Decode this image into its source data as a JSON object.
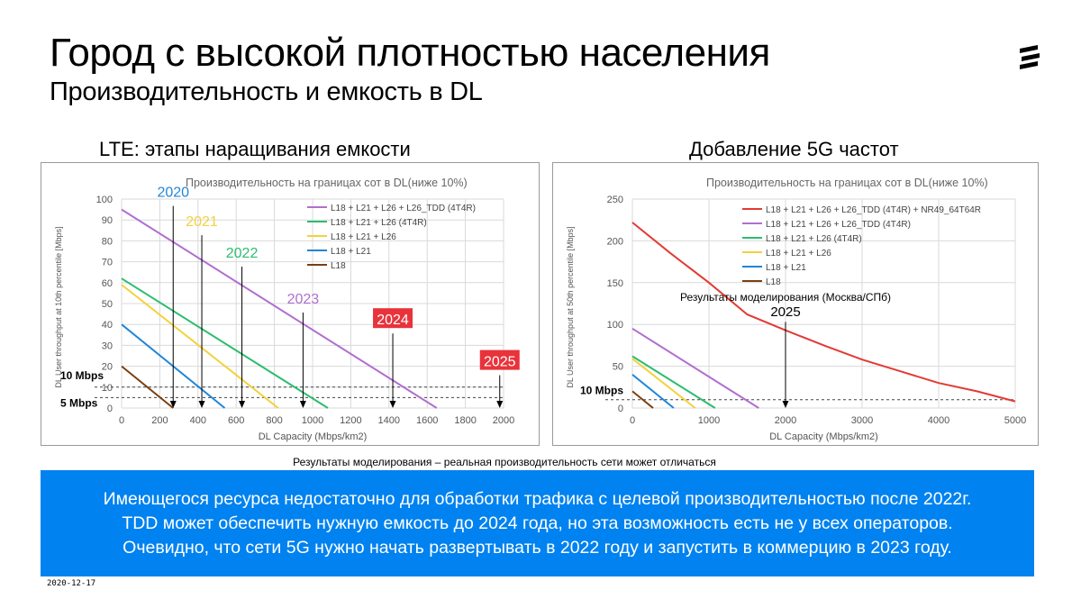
{
  "header": {
    "title": "Город с высокой плотностью населения",
    "subtitle": "Производительность и емкость в DL",
    "logo_icon": "ericsson-logo-icon"
  },
  "left_panel": {
    "heading": "LTE: этапы наращивания емкости"
  },
  "right_panel": {
    "heading": "Добавление 5G частот"
  },
  "chart_data": [
    {
      "type": "line",
      "title": "Производительность на границах сот в DL(ниже 10%)",
      "xlabel": "DL Capacity (Mbps/km2)",
      "ylabel": "DL User throughput at 10th percentile [Mbps]",
      "xlim": [
        0,
        2000
      ],
      "ylim": [
        0,
        100
      ],
      "x_ticks": [
        "0",
        "200",
        "400",
        "600",
        "800",
        "1000",
        "1200",
        "1400",
        "1600",
        "1800",
        "2000"
      ],
      "y_ticks": [
        "0",
        "10",
        "20",
        "30",
        "40",
        "50",
        "60",
        "70",
        "80",
        "90",
        "100"
      ],
      "grid": true,
      "legend_position": "top-right",
      "series": [
        {
          "name": "L18 + L21 + L26 + L26_TDD (4T4R)",
          "color": "#b06fcf",
          "x": [
            0,
            1650
          ],
          "y": [
            95,
            0
          ]
        },
        {
          "name": "L18 + L21 + L26 (4T4R)",
          "color": "#2cbd6e",
          "x": [
            0,
            1080
          ],
          "y": [
            62,
            0
          ]
        },
        {
          "name": "L18 + L21 + L26",
          "color": "#f2d23c",
          "x": [
            0,
            820
          ],
          "y": [
            59,
            0
          ]
        },
        {
          "name": "L18 + L21",
          "color": "#1f86d8",
          "x": [
            0,
            540
          ],
          "y": [
            40,
            0
          ]
        },
        {
          "name": "L18",
          "color": "#7a3f12",
          "x": [
            0,
            270
          ],
          "y": [
            20,
            0
          ]
        }
      ],
      "reference_lines": [
        {
          "label": "10 Mbps",
          "y": 10
        },
        {
          "label": "5 Mbps",
          "y": 5
        }
      ],
      "annotations": [
        {
          "text": "2020",
          "color": "#1f86d8",
          "x": 270,
          "text_y": 101
        },
        {
          "text": "2021",
          "color": "#f2d23c",
          "x": 420,
          "text_y": 87
        },
        {
          "text": "2022",
          "color": "#2cbd6e",
          "x": 630,
          "text_y": 72
        },
        {
          "text": "2023",
          "color": "#b06fcf",
          "x": 950,
          "text_y": 50
        },
        {
          "text": "2024",
          "color": "#e8333b",
          "x": 1420,
          "text_y": 40,
          "boxed": true
        },
        {
          "text": "2025",
          "color": "#e8333b",
          "x": 1980,
          "text_y": 20,
          "boxed": true
        }
      ]
    },
    {
      "type": "line",
      "title": "Производительность на границах сот в DL(ниже 10%)",
      "xlabel": "DL Capacity (Mbps/km2)",
      "ylabel": "DL User throughput at 50th percentile [Mbps]",
      "xlim": [
        0,
        5000
      ],
      "ylim": [
        0,
        250
      ],
      "x_ticks": [
        "0",
        "1000",
        "2000",
        "3000",
        "4000",
        "5000"
      ],
      "y_ticks": [
        "0",
        "50",
        "100",
        "150",
        "200",
        "250"
      ],
      "grid": true,
      "legend_position": "top-right",
      "series": [
        {
          "name": "L18 + L21 + L26 + L26_TDD (4T4R) + NR49_64T64R",
          "color": "#e23b34",
          "x": [
            0,
            500,
            1000,
            1500,
            2000,
            2500,
            3000,
            3500,
            4000,
            4500,
            5000
          ],
          "y": [
            222,
            185,
            150,
            112,
            93,
            75,
            58,
            44,
            30,
            20,
            8
          ]
        },
        {
          "name": "L18 + L21 + L26 + L26_TDD (4T4R)",
          "color": "#b06fcf",
          "x": [
            0,
            1650
          ],
          "y": [
            95,
            0
          ]
        },
        {
          "name": "L18 + L21 + L26 (4T4R)",
          "color": "#2cbd6e",
          "x": [
            0,
            1080
          ],
          "y": [
            62,
            0
          ]
        },
        {
          "name": "L18 + L21 + L26",
          "color": "#f2d23c",
          "x": [
            0,
            820
          ],
          "y": [
            59,
            0
          ]
        },
        {
          "name": "L18 + L21",
          "color": "#1f86d8",
          "x": [
            0,
            540
          ],
          "y": [
            40,
            0
          ]
        },
        {
          "name": "L18",
          "color": "#7a3f12",
          "x": [
            0,
            270
          ],
          "y": [
            20,
            0
          ]
        }
      ],
      "reference_lines": [
        {
          "label": "10 Mbps",
          "y": 10
        }
      ],
      "annotations": [
        {
          "text": "Результаты моделирования (Москва/СПб)",
          "x": 2000,
          "text_y": 128
        },
        {
          "text": "2025",
          "x": 2000,
          "text_y": 110
        }
      ]
    }
  ],
  "footer": {
    "disclaimer": "Результаты моделирования – реальная производительность сети может отличаться",
    "banner": [
      "Имеющегося ресурса недостаточно для обработки трафика с целевой производительностью после 2022г.",
      "TDD может обеспечить нужную емкость до 2024 года, но эта возможность есть не у всех операторов.",
      "Очевидно, что сети 5G нужно начать развертывать в 2022 году и запустить в коммерцию в 2023 году."
    ],
    "date": "2020-12-17",
    "banner_color": "#0082f0"
  }
}
